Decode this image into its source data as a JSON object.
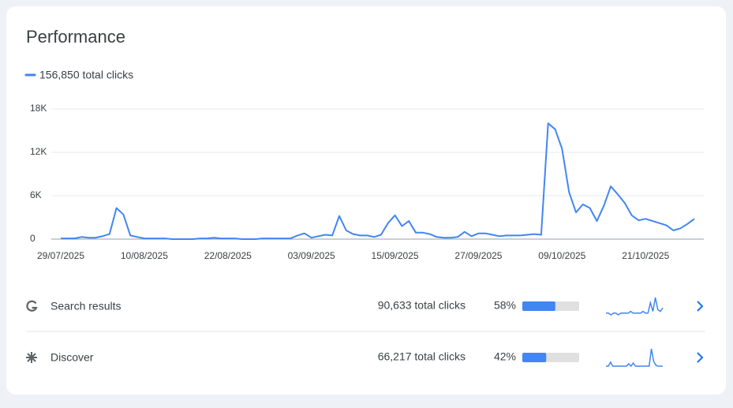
{
  "title": "Performance",
  "chart_data": {
    "type": "line",
    "categories": [
      "29/07/2025",
      null,
      null,
      null,
      null,
      null,
      null,
      null,
      null,
      null,
      null,
      null,
      "10/08/2025",
      null,
      null,
      null,
      null,
      null,
      null,
      null,
      null,
      null,
      null,
      null,
      "22/08/2025",
      null,
      null,
      null,
      null,
      null,
      null,
      null,
      null,
      null,
      null,
      null,
      "03/09/2025",
      null,
      null,
      null,
      null,
      null,
      null,
      null,
      null,
      null,
      null,
      null,
      "15/09/2025",
      null,
      null,
      null,
      null,
      null,
      null,
      null,
      null,
      null,
      null,
      null,
      "27/09/2025",
      null,
      null,
      null,
      null,
      null,
      null,
      null,
      null,
      null,
      null,
      null,
      "09/10/2025",
      null,
      null,
      null,
      null,
      null,
      null,
      null,
      null,
      null,
      null,
      null,
      "21/10/2025",
      null,
      null,
      null,
      null,
      null,
      null,
      null
    ],
    "series": [
      {
        "name": "156,850 total clicks",
        "color": "#4285f4",
        "values": [
          100,
          100,
          100,
          300,
          200,
          200,
          400,
          700,
          4300,
          3400,
          500,
          300,
          100,
          100,
          100,
          100,
          0,
          0,
          0,
          0,
          100,
          100,
          200,
          100,
          100,
          100,
          0,
          0,
          0,
          100,
          100,
          100,
          100,
          100,
          500,
          800,
          200,
          400,
          600,
          500,
          3200,
          1200,
          700,
          500,
          500,
          300,
          600,
          2200,
          3300,
          1800,
          2500,
          900,
          900,
          700,
          300,
          200,
          200,
          300,
          1000,
          400,
          800,
          800,
          600,
          400,
          500,
          500,
          500,
          600,
          700,
          600,
          16000,
          15200,
          12500,
          6500,
          3700,
          4800,
          4300,
          2500,
          4600,
          7300,
          6200,
          5000,
          3300,
          2600,
          2800,
          2500,
          2200,
          1900,
          1200,
          1500,
          2100,
          2800
        ]
      }
    ],
    "ylim": [
      0,
      18000
    ],
    "yticks": [
      0,
      {
        "value": 6000,
        "label": "6K"
      },
      {
        "value": 12000,
        "label": "12K"
      },
      {
        "value": 18000,
        "label": "18K"
      }
    ],
    "grid": true
  },
  "rows": [
    {
      "label": "Search results",
      "clicks": "90,633 total clicks",
      "share": {
        "value": 58,
        "label": "58%"
      },
      "trend": [
        1,
        1,
        0,
        1,
        1,
        0,
        1,
        1,
        1,
        1,
        2,
        1,
        1,
        1,
        1,
        2,
        1,
        1,
        7,
        2,
        10,
        3,
        2,
        4
      ]
    },
    {
      "label": "Discover",
      "clicks": "66,217 total clicks",
      "share": {
        "value": 42,
        "label": "42%"
      },
      "trend": [
        0,
        0,
        5,
        0,
        0,
        0,
        0,
        0,
        0,
        0,
        3,
        0,
        4,
        0,
        0,
        0,
        0,
        0,
        0,
        0,
        22,
        6,
        1,
        0,
        0,
        0
      ]
    }
  ]
}
